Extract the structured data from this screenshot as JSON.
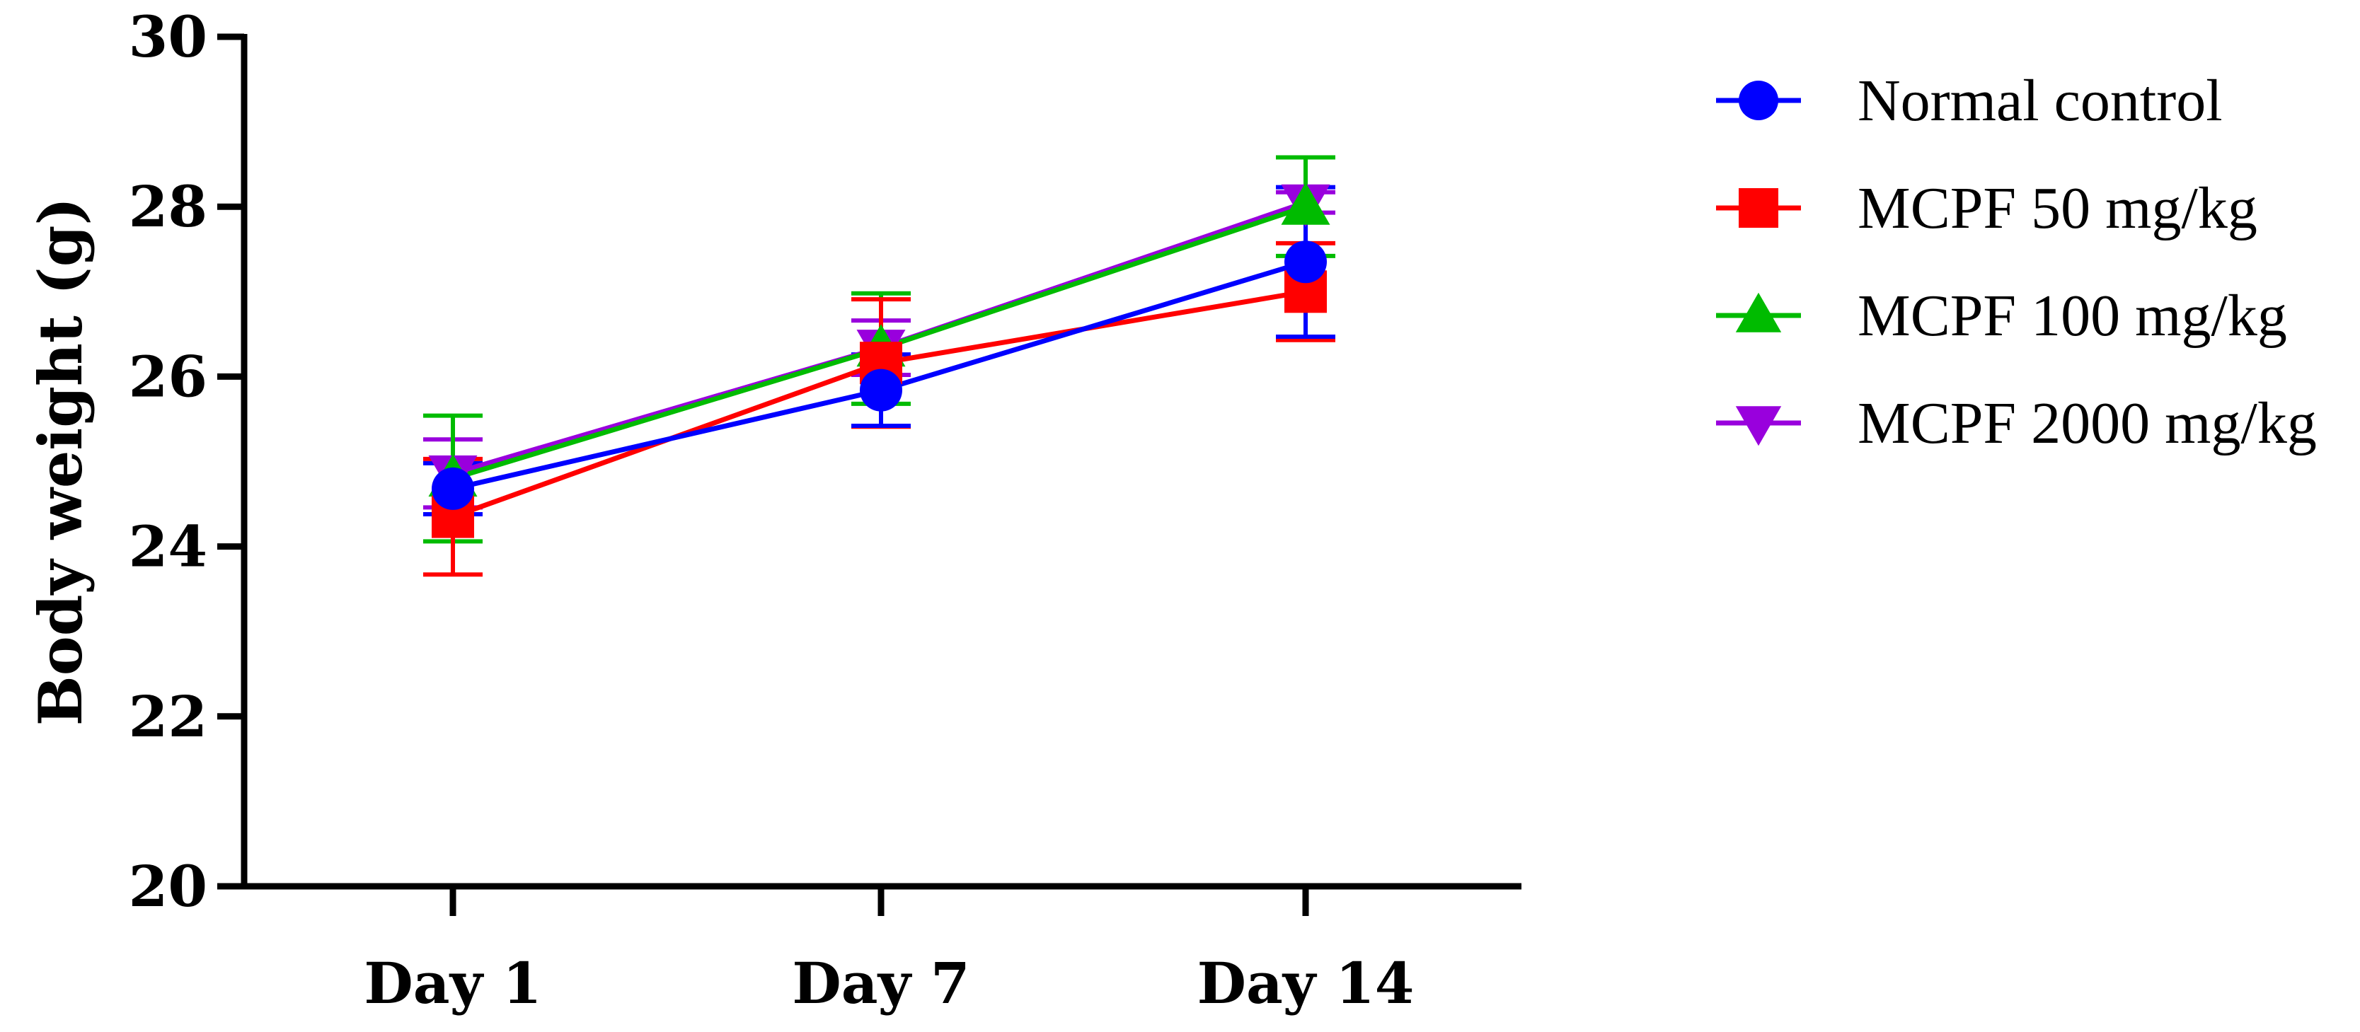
{
  "chart_data": {
    "type": "line",
    "title": "",
    "xlabel": "",
    "ylabel": "Body weight (g)",
    "categories": [
      "Day 1",
      "Day 7",
      "Day 14"
    ],
    "ylim": [
      20,
      30
    ],
    "yticks": [
      20,
      22,
      24,
      26,
      28,
      30
    ],
    "ytick_labels": [
      "20",
      "22",
      "24",
      "26",
      "28",
      "30"
    ],
    "grid": false,
    "legend_position": "right",
    "series": [
      {
        "name": "Normal control",
        "color": "#0000FF",
        "marker": "circle",
        "values": [
          24.68,
          25.84,
          27.35
        ],
        "err": [
          0.3,
          0.42,
          0.88
        ]
      },
      {
        "name": "MCPF 50 mg/kg",
        "color": "#FF0000",
        "marker": "square",
        "values": [
          24.35,
          26.16,
          27.0
        ],
        "err": [
          0.68,
          0.75,
          0.57
        ]
      },
      {
        "name": "MCPF 100 mg/kg",
        "color": "#00BB00",
        "marker": "triangle-up",
        "values": [
          24.8,
          26.33,
          28.0
        ],
        "err": [
          0.74,
          0.65,
          0.58
        ]
      },
      {
        "name": "MCPF 2000 mg/kg",
        "color": "#9900DD",
        "marker": "triangle-down",
        "values": [
          24.86,
          26.34,
          28.05
        ],
        "err": [
          0.4,
          0.32,
          0.12
        ]
      }
    ]
  }
}
